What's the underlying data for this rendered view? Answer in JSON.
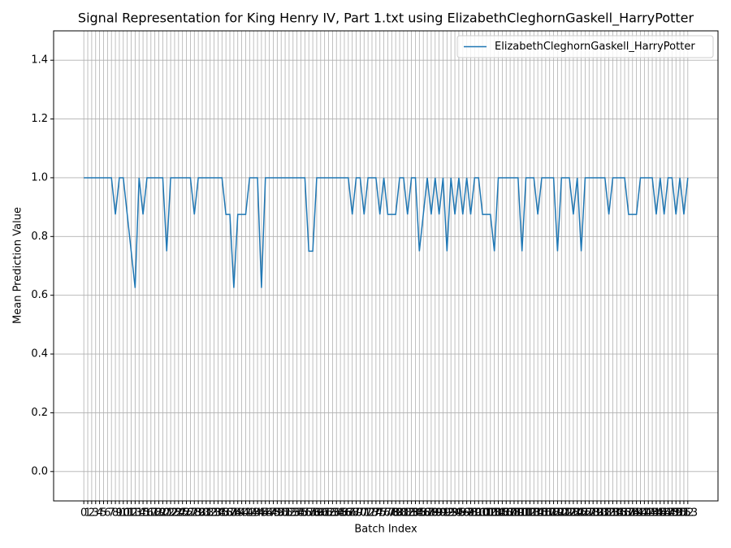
{
  "chart_data": {
    "type": "line",
    "title": "Signal Representation for King Henry IV, Part 1.txt using ElizabethCleghornGaskell_HarryPotter",
    "x_label": "Batch Index",
    "y_label": "Mean Prediction Value",
    "x": [
      0,
      1,
      2,
      3,
      4,
      5,
      6,
      7,
      8,
      9,
      10,
      11,
      12,
      13,
      14,
      15,
      16,
      17,
      18,
      19,
      20,
      21,
      22,
      23,
      24,
      25,
      26,
      27,
      28,
      29,
      30,
      31,
      32,
      33,
      34,
      35,
      36,
      37,
      38,
      39,
      40,
      41,
      42,
      43,
      44,
      45,
      46,
      47,
      48,
      49,
      50,
      51,
      52,
      53,
      54,
      55,
      56,
      57,
      58,
      59,
      60,
      61,
      62,
      63,
      64,
      65,
      66,
      67,
      68,
      69,
      70,
      71,
      72,
      73,
      74,
      75,
      76,
      77,
      78,
      79,
      80,
      81,
      82,
      83,
      84,
      85,
      86,
      87,
      88,
      89,
      90,
      91,
      92,
      93,
      94,
      95,
      96,
      97,
      98,
      99,
      100,
      101,
      102,
      103,
      104,
      105,
      106,
      107,
      108,
      109,
      110,
      111,
      112,
      113,
      114,
      115,
      116,
      117,
      118,
      119,
      120,
      121,
      122,
      123,
      124,
      125,
      126,
      127,
      128,
      129,
      130,
      131,
      132,
      133,
      134,
      135,
      136,
      137,
      138,
      139,
      140,
      141,
      142,
      143,
      144,
      145,
      146,
      147,
      148,
      149,
      150,
      151,
      152,
      153
    ],
    "series": [
      {
        "name": "ElizabethCleghornGaskell_HarryPotter",
        "color": "#1f77b4",
        "values": [
          1,
          1,
          1,
          1,
          1,
          1,
          1,
          1,
          0.875,
          1,
          1,
          0.875,
          0.75,
          0.625,
          1,
          0.875,
          1,
          1,
          1,
          1,
          1,
          0.75,
          1,
          1,
          1,
          1,
          1,
          1,
          0.875,
          1,
          1,
          1,
          1,
          1,
          1,
          1,
          0.875,
          0.875,
          0.625,
          0.875,
          0.875,
          0.875,
          1,
          1,
          1,
          0.625,
          1,
          1,
          1,
          1,
          1,
          1,
          1,
          1,
          1,
          1,
          1,
          0.75,
          0.75,
          1,
          1,
          1,
          1,
          1,
          1,
          1,
          1,
          1,
          0.875,
          1,
          1,
          0.875,
          1,
          1,
          1,
          0.875,
          1,
          0.875,
          0.875,
          0.875,
          1,
          1,
          0.875,
          1,
          1,
          0.75,
          0.875,
          1,
          0.875,
          1,
          0.875,
          1,
          0.75,
          1,
          0.875,
          1,
          0.875,
          1,
          0.875,
          1,
          1,
          0.875,
          0.875,
          0.875,
          0.75,
          1,
          1,
          1,
          1,
          1,
          1,
          0.75,
          1,
          1,
          1,
          0.875,
          1,
          1,
          1,
          1,
          0.75,
          1,
          1,
          1,
          0.875,
          1,
          0.75,
          1,
          1,
          1,
          1,
          1,
          1,
          0.875,
          1,
          1,
          1,
          1,
          0.875,
          0.875,
          0.875,
          1,
          1,
          1,
          1,
          0.875,
          1,
          0.875,
          1,
          1,
          0.875,
          1,
          0.875,
          1
        ]
      }
    ],
    "xlim": [
      -7.65,
      160.65
    ],
    "xticks": [
      0,
      1,
      2,
      3,
      4,
      5,
      6,
      7,
      8,
      9,
      10,
      11,
      12,
      13,
      14,
      15,
      16,
      17,
      18,
      19,
      20,
      21,
      22,
      23,
      24,
      25,
      26,
      27,
      28,
      29,
      30,
      31,
      32,
      33,
      34,
      35,
      36,
      37,
      38,
      39,
      40,
      41,
      42,
      43,
      44,
      45,
      46,
      47,
      48,
      49,
      50,
      51,
      52,
      53,
      54,
      55,
      56,
      57,
      58,
      59,
      60,
      61,
      62,
      63,
      64,
      65,
      66,
      67,
      68,
      69,
      70,
      71,
      72,
      73,
      74,
      75,
      76,
      77,
      78,
      79,
      80,
      81,
      82,
      83,
      84,
      85,
      86,
      87,
      88,
      89,
      90,
      91,
      92,
      93,
      94,
      95,
      96,
      97,
      98,
      99,
      100,
      101,
      102,
      103,
      104,
      105,
      106,
      107,
      108,
      109,
      110,
      111,
      112,
      113,
      114,
      115,
      116,
      117,
      118,
      119,
      120,
      121,
      122,
      123,
      124,
      125,
      126,
      127,
      128,
      129,
      130,
      131,
      132,
      133,
      134,
      135,
      136,
      137,
      138,
      139,
      140,
      141,
      142,
      143,
      144,
      145,
      146,
      147,
      148,
      149,
      150,
      151,
      152,
      153
    ],
    "ylim": [
      -0.1,
      1.5
    ],
    "yticks": [
      {
        "value": 0,
        "label": "0.0"
      },
      {
        "value": 0.2,
        "label": "0.2"
      },
      {
        "value": 0.4,
        "label": "0.4"
      },
      {
        "value": 0.6,
        "label": "0.6"
      },
      {
        "value": 0.8,
        "label": "0.8"
      },
      {
        "value": 1,
        "label": "1.0"
      },
      {
        "value": 1.2,
        "label": "1.2"
      },
      {
        "value": 1.4,
        "label": "1.4"
      }
    ],
    "grid": true,
    "legend_position": "upper right"
  }
}
